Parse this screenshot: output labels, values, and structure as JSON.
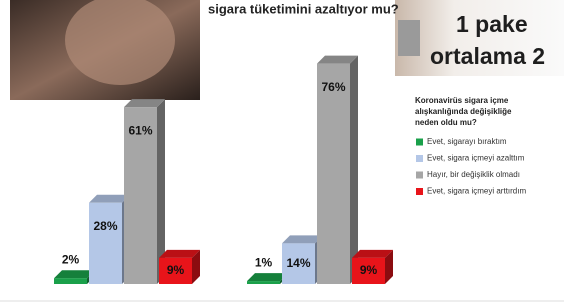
{
  "chart_data": {
    "type": "bar",
    "title": "sigara tüketimini azaltıyor mu?",
    "legend_title": [
      "Koronavirüs sigara içme",
      "alışkanlığında değişikliğe",
      "neden oldu mu?"
    ],
    "categories": [
      null,
      null
    ],
    "series": [
      {
        "name": "Evet, sigarayı bıraktım",
        "color": "#1aa04a",
        "values": [
          2,
          1
        ],
        "value_labels": [
          "2%",
          "1%"
        ]
      },
      {
        "name": "Evet, sigara içmeyi azalttım",
        "color": "#b4c7e7",
        "values": [
          28,
          14
        ],
        "value_labels": [
          "28%",
          "14%"
        ]
      },
      {
        "name": "Hayır, bir değişiklik olmadı",
        "color": "#a6a6a6",
        "values": [
          61,
          76
        ],
        "value_labels": [
          "61%",
          "76%"
        ]
      },
      {
        "name": "Evet, sigara içmeyi arttırdım",
        "color": "#e8141a",
        "values": [
          9,
          9
        ],
        "value_labels": [
          "9%",
          "9%"
        ]
      }
    ]
  },
  "photo_text": [
    "1 pake",
    "ortalama 2"
  ]
}
